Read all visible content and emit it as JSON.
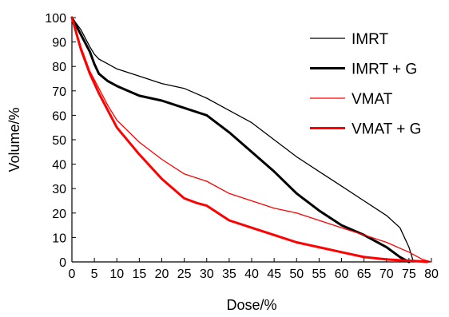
{
  "chart_data": {
    "type": "line",
    "title": "",
    "xlabel": "Dose/%",
    "ylabel": "Volume/%",
    "xlim": [
      0,
      80
    ],
    "ylim": [
      0,
      100
    ],
    "xticks": [
      0,
      5,
      10,
      15,
      20,
      25,
      30,
      35,
      40,
      45,
      50,
      55,
      60,
      65,
      70,
      75,
      80
    ],
    "yticks": [
      0,
      10,
      20,
      30,
      40,
      50,
      60,
      70,
      80,
      90,
      100
    ],
    "grid": false,
    "legend_position": "top-right",
    "series": [
      {
        "name": "IMRT",
        "color": "#000000",
        "weight": "thin",
        "x": [
          0,
          2,
          4,
          5,
          6,
          8,
          10,
          15,
          20,
          25,
          30,
          35,
          40,
          45,
          50,
          55,
          60,
          65,
          70,
          73,
          75,
          76
        ],
        "y": [
          100,
          95,
          88,
          85,
          83,
          81,
          79,
          76,
          73,
          71,
          67,
          62,
          57,
          50,
          43,
          37,
          31,
          25,
          19,
          14,
          6,
          0
        ]
      },
      {
        "name": "IMRT + G",
        "color": "#000000",
        "weight": "thick",
        "x": [
          0,
          2,
          4,
          5,
          6,
          8,
          10,
          15,
          20,
          25,
          30,
          35,
          40,
          45,
          50,
          55,
          60,
          65,
          70,
          73,
          75
        ],
        "y": [
          100,
          93,
          86,
          81,
          77,
          74,
          72,
          68,
          66,
          63,
          60,
          53,
          45,
          37,
          28,
          21,
          15,
          11,
          6,
          2,
          0
        ]
      },
      {
        "name": "VMAT",
        "color": "#ff0000",
        "weight": "thin",
        "x": [
          0,
          2,
          4,
          6,
          8,
          10,
          15,
          20,
          25,
          30,
          35,
          40,
          45,
          50,
          55,
          60,
          65,
          70,
          75,
          78,
          80
        ],
        "y": [
          100,
          88,
          78,
          71,
          64,
          58,
          49,
          42,
          36,
          33,
          28,
          25,
          22,
          20,
          17,
          14,
          11,
          8,
          4,
          1,
          0
        ]
      },
      {
        "name": "VMAT + G",
        "color": "#ff0000",
        "weight": "thick",
        "x": [
          0,
          2,
          4,
          6,
          8,
          10,
          15,
          20,
          25,
          28,
          30,
          35,
          40,
          45,
          50,
          55,
          60,
          65,
          70,
          75,
          78,
          79
        ],
        "y": [
          100,
          87,
          77,
          69,
          62,
          55,
          44,
          34,
          26,
          24,
          23,
          17,
          14,
          11,
          8,
          6,
          4,
          2,
          1,
          0.5,
          0.2,
          0
        ]
      }
    ]
  }
}
